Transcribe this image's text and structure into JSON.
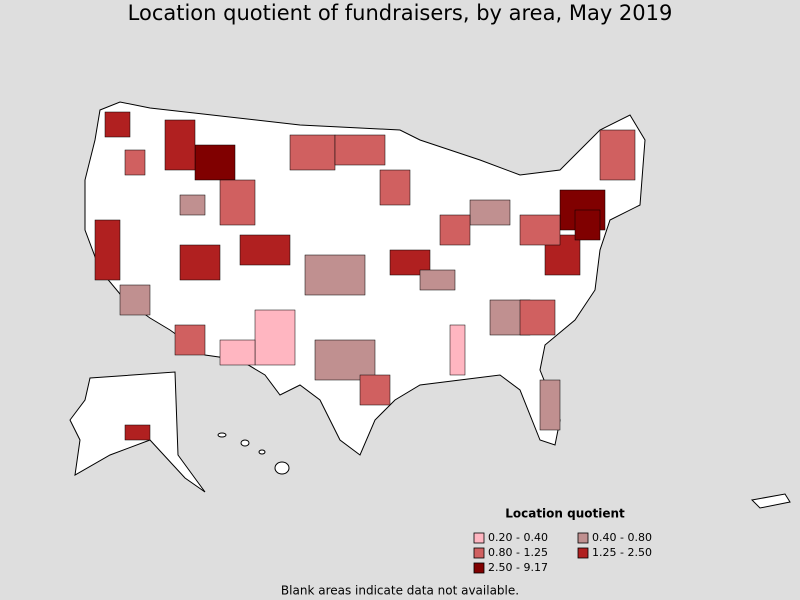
{
  "title": "Location quotient of fundraisers, by area, May 2019",
  "legend": {
    "title": "Location quotient",
    "items": [
      {
        "label": "0.20 - 0.40",
        "color": "#ffb6c1"
      },
      {
        "label": "0.40 - 0.80",
        "color": "#c09090"
      },
      {
        "label": "0.80 - 1.25",
        "color": "#d06060"
      },
      {
        "label": "1.25 - 2.50",
        "color": "#b02020"
      },
      {
        "label": "2.50 - 9.17",
        "color": "#800000"
      }
    ]
  },
  "footnote": "Blank areas indicate data not available."
}
